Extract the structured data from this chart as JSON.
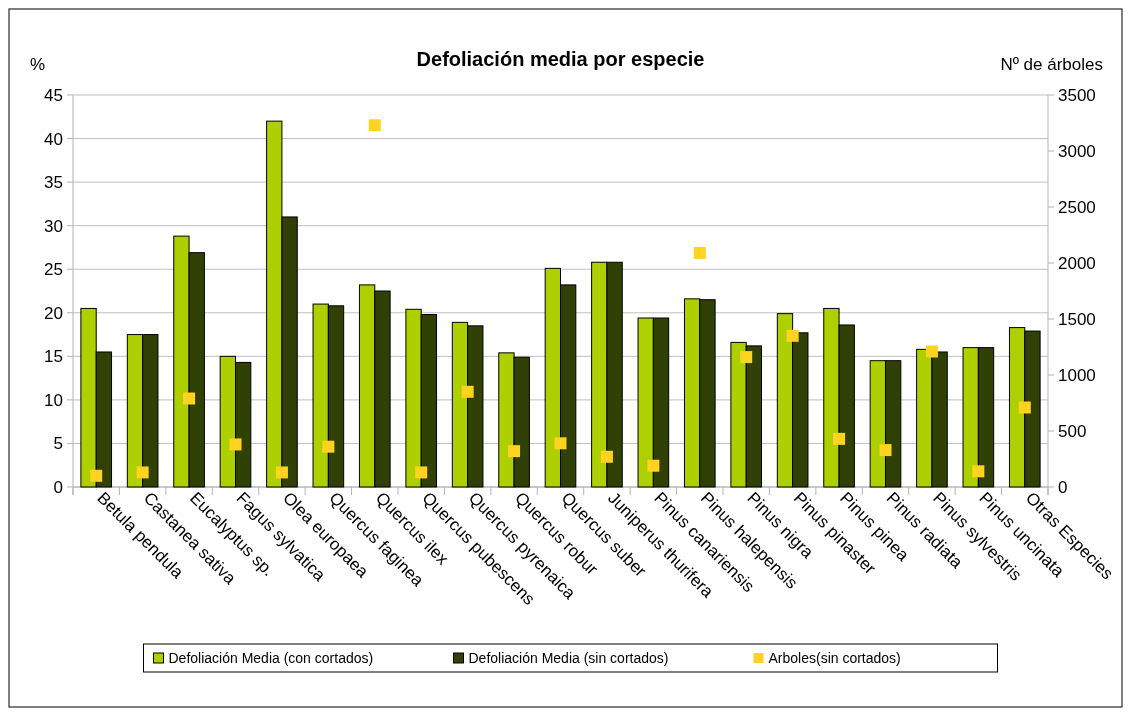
{
  "chart_data": {
    "type": "bar",
    "title": "Defoliación media por especie",
    "ylabel": "%",
    "y2label": "Nº de árboles",
    "categories": [
      "Betula pendula",
      "Castanea sativa",
      "Eucalyptus sp.",
      "Fagus sylvatica",
      "Olea europaea",
      "Quercus faginea",
      "Quercus ilex",
      "Quercus pubescens",
      "Quercus pyrenaica",
      "Quercus robur",
      "Quercus suber",
      "Juniperus thurifera",
      "Pinus canariensis",
      "Pinus halepensis",
      "Pinus nigra",
      "Pinus pinaster",
      "Pinus pinea",
      "Pinus radiata",
      "Pinus sylvestris",
      "Pinus uncinata",
      "Otras Especies"
    ],
    "series": [
      {
        "name": "Defoliación Media (con cortados)",
        "color": "#aecf00",
        "values": [
          20.5,
          17.5,
          28.8,
          15,
          42,
          21,
          23.2,
          20.4,
          18.9,
          15.4,
          25.1,
          25.8,
          19.4,
          21.6,
          16.6,
          19.9,
          20.5,
          14.5,
          15.8,
          16,
          18.3
        ]
      },
      {
        "name": "Defoliación Media (sin cortados)",
        "color": "#314004",
        "values": [
          15.5,
          17.5,
          26.9,
          14.3,
          31,
          20.8,
          22.5,
          19.8,
          18.5,
          14.9,
          23.2,
          25.8,
          19.4,
          21.5,
          16.2,
          17.7,
          18.6,
          14.5,
          15.5,
          16,
          17.9
        ]
      },
      {
        "name": "Arboles(sin cortados)",
        "type": "scatter",
        "axis": "y2",
        "color": "#ffd320",
        "marker": "square",
        "values": [
          100,
          130,
          790,
          380,
          130,
          360,
          3230,
          130,
          850,
          320,
          390,
          270,
          190,
          2090,
          1160,
          1350,
          430,
          330,
          1210,
          140,
          710
        ]
      }
    ],
    "ylim": [
      0,
      45
    ],
    "yticks": [
      0,
      5,
      10,
      15,
      20,
      25,
      30,
      35,
      40,
      45
    ],
    "y2lim": [
      0,
      3500
    ],
    "y2ticks": [
      0,
      500,
      1000,
      1500,
      2000,
      2500,
      3000,
      3500
    ],
    "grid": "y",
    "legend": "bottom"
  }
}
